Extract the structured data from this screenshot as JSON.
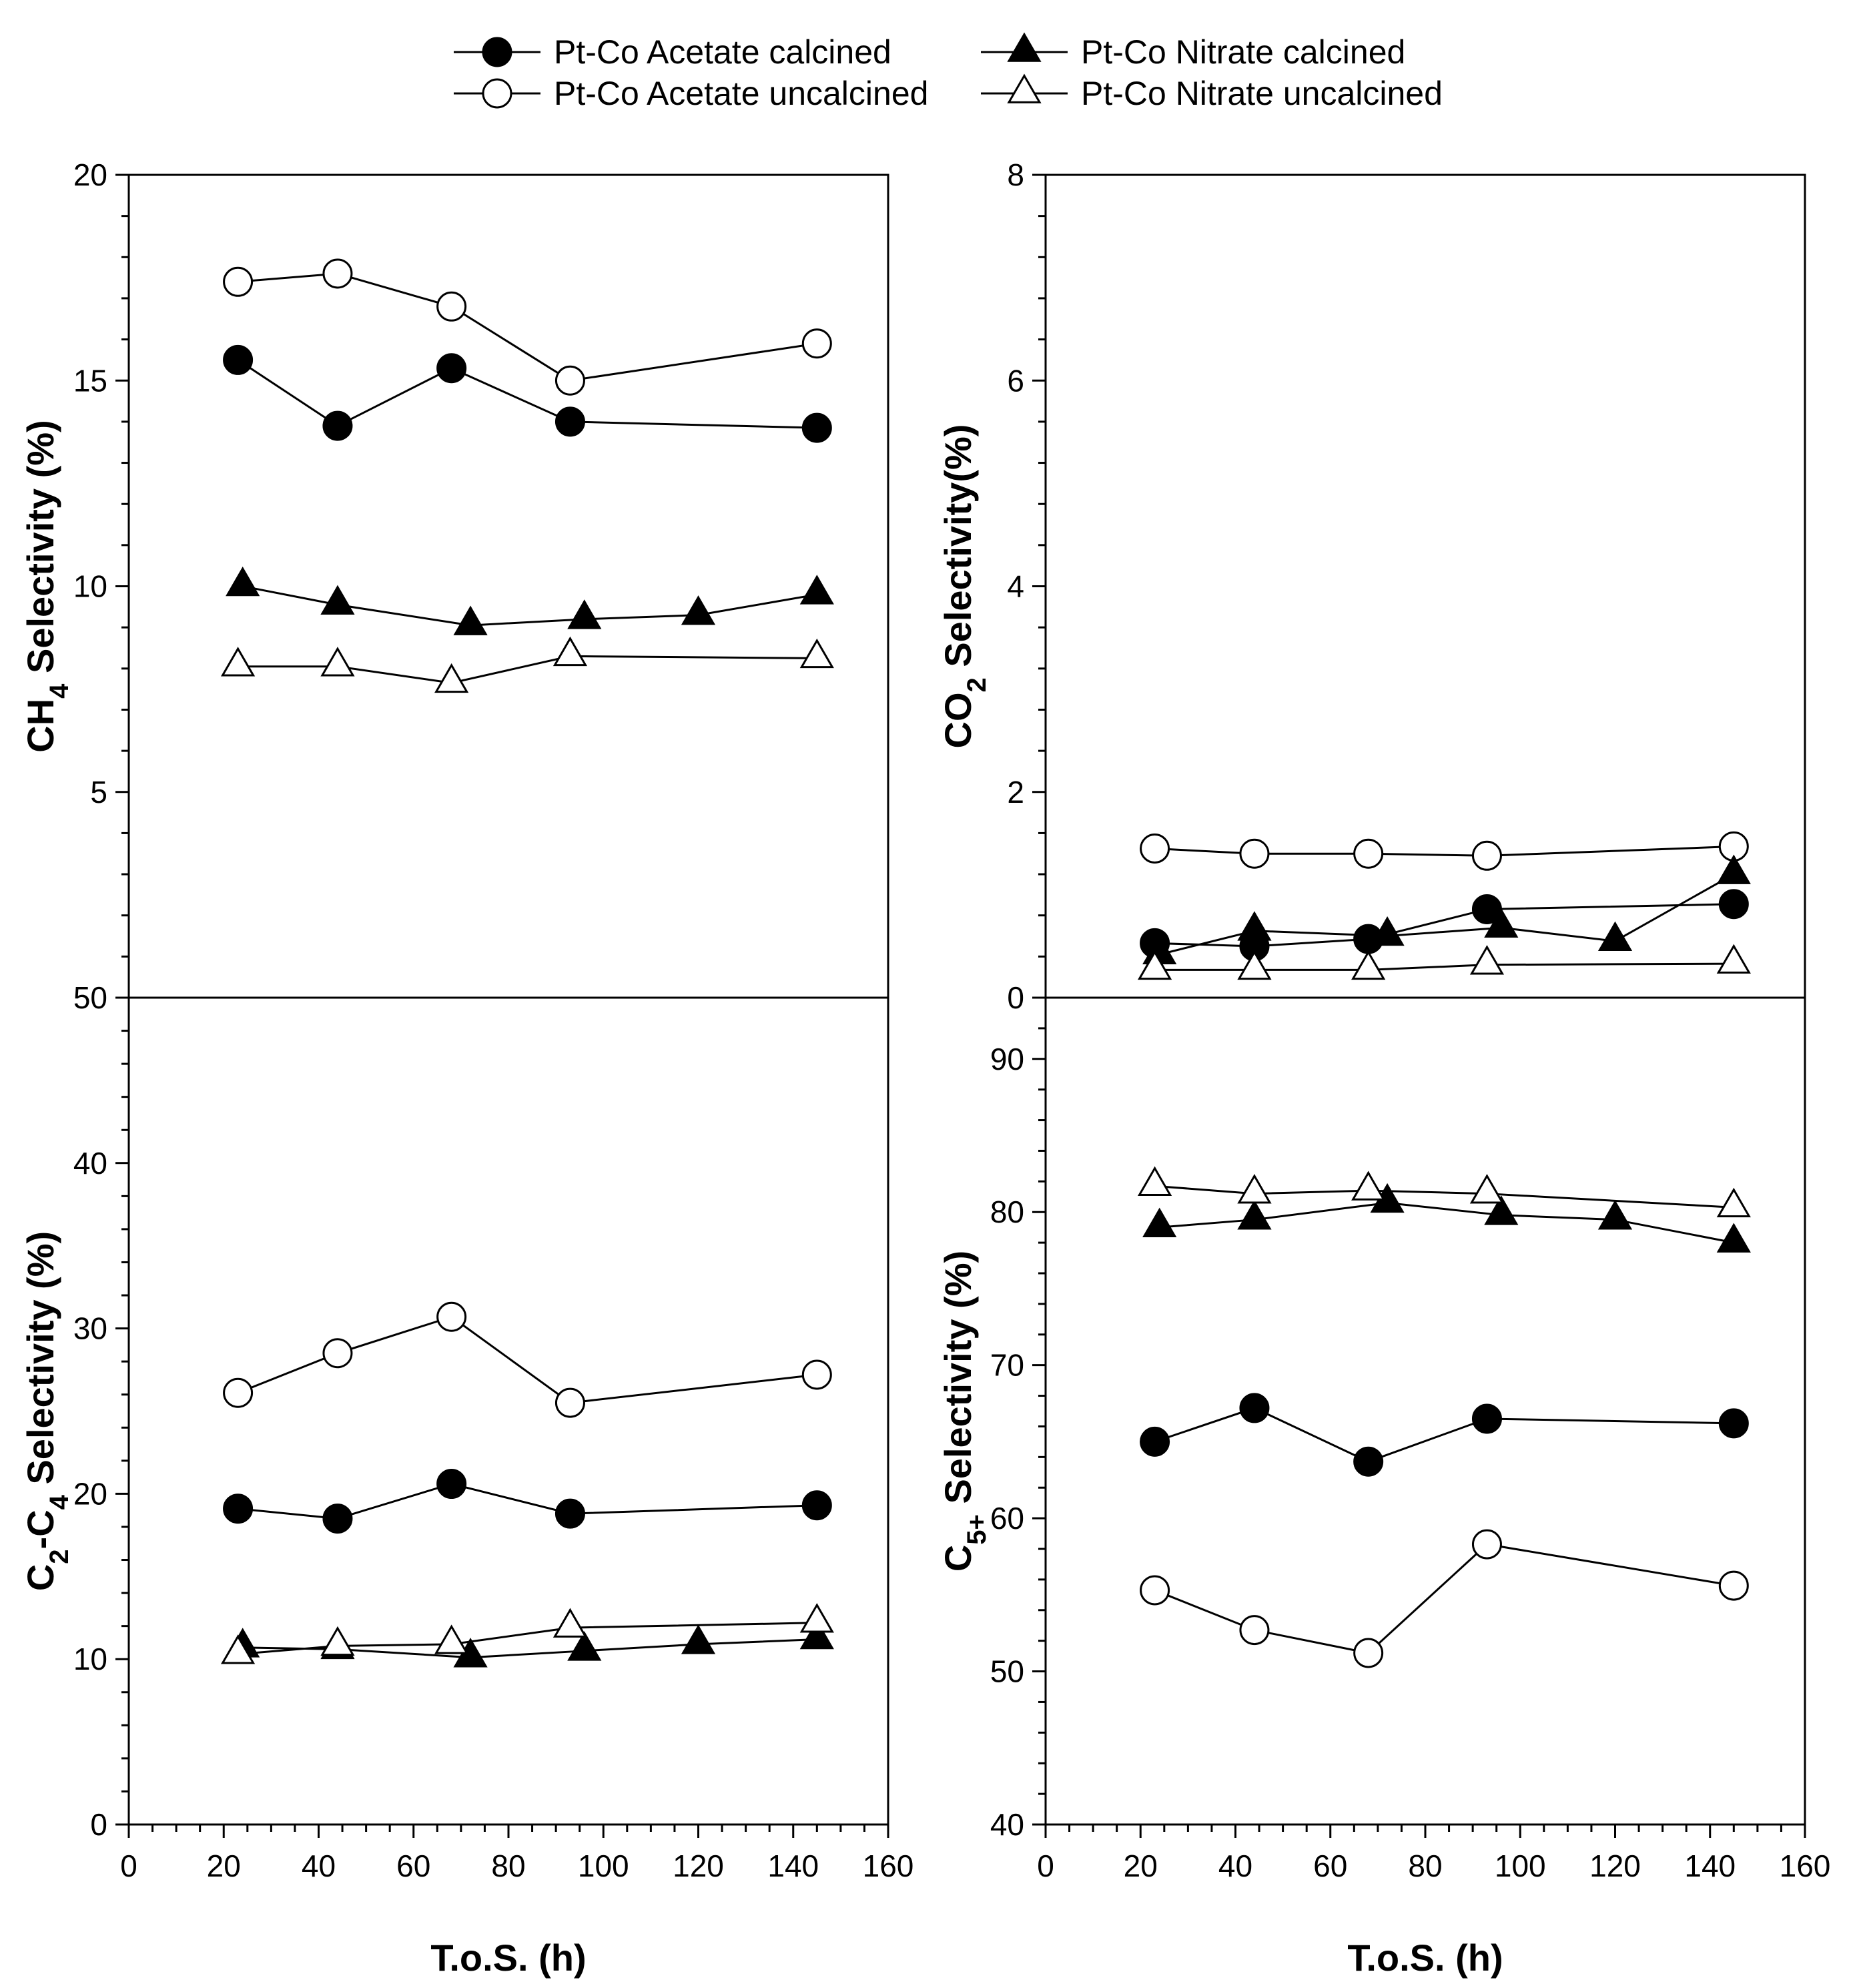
{
  "chart_data": [
    {
      "type": "line",
      "id": "ch4",
      "ylabel": "CH4 Selectivity (%)",
      "ylabel_parts": [
        [
          "CH",
          ""
        ],
        [
          "4",
          "sub"
        ],
        [
          " Selectivity (%)",
          ""
        ]
      ],
      "ylim": [
        0,
        20
      ],
      "yticks": [
        5,
        10,
        15,
        20
      ],
      "show_x_ticks": false,
      "series": [
        {
          "name": "Pt-Co Acetate calcined",
          "x": [
            23,
            44,
            68,
            93,
            145
          ],
          "y": [
            15.5,
            13.9,
            15.3,
            14.0,
            13.85
          ]
        },
        {
          "name": "Pt-Co Acetate uncalcined",
          "x": [
            23,
            44,
            68,
            93,
            145
          ],
          "y": [
            17.4,
            17.6,
            16.8,
            15.0,
            15.9
          ]
        },
        {
          "name": "Pt-Co Nitrate calcined",
          "x": [
            24,
            44,
            72,
            96,
            120,
            145
          ],
          "y": [
            10.0,
            9.55,
            9.05,
            9.2,
            9.3,
            9.8
          ]
        },
        {
          "name": "Pt-Co Nitrate uncalcined",
          "x": [
            23,
            44,
            68,
            93,
            145
          ],
          "y": [
            8.05,
            8.05,
            7.65,
            8.3,
            8.25
          ]
        }
      ]
    },
    {
      "type": "line",
      "id": "co2",
      "ylabel": "CO2 Selectivity(%)",
      "ylabel_parts": [
        [
          "CO",
          ""
        ],
        [
          "2",
          "sub"
        ],
        [
          " Selectivity(%)",
          ""
        ]
      ],
      "ylim": [
        0,
        8
      ],
      "yticks": [
        0,
        2,
        4,
        6,
        8
      ],
      "show_x_ticks": false,
      "series": [
        {
          "name": "Pt-Co Acetate calcined",
          "x": [
            23,
            44,
            68,
            93,
            145
          ],
          "y": [
            0.53,
            0.5,
            0.57,
            0.86,
            0.91
          ]
        },
        {
          "name": "Pt-Co Acetate uncalcined",
          "x": [
            23,
            44,
            68,
            93,
            145
          ],
          "y": [
            1.45,
            1.4,
            1.4,
            1.38,
            1.47
          ]
        },
        {
          "name": "Pt-Co Nitrate calcined",
          "x": [
            24,
            44,
            72,
            96,
            120,
            145
          ],
          "y": [
            0.42,
            0.65,
            0.6,
            0.68,
            0.55,
            1.2
          ]
        },
        {
          "name": "Pt-Co Nitrate uncalcined",
          "x": [
            23,
            44,
            68,
            93,
            145
          ],
          "y": [
            0.27,
            0.27,
            0.27,
            0.32,
            0.33
          ]
        }
      ]
    },
    {
      "type": "line",
      "id": "c2c4",
      "ylabel": "C2-C4 Selectivity (%)",
      "ylabel_parts": [
        [
          "C",
          ""
        ],
        [
          "2",
          "sub"
        ],
        [
          "-C",
          ""
        ],
        [
          "4",
          "sub"
        ],
        [
          " Selectivity (%)",
          ""
        ]
      ],
      "xlabel": "T.o.S. (h)",
      "xlim": [
        0,
        160
      ],
      "xticks": [
        0,
        20,
        40,
        60,
        80,
        100,
        120,
        140,
        160
      ],
      "ylim": [
        0,
        50
      ],
      "yticks": [
        0,
        10,
        20,
        30,
        40,
        50
      ],
      "show_x_ticks": true,
      "series": [
        {
          "name": "Pt-Co Acetate calcined",
          "x": [
            23,
            44,
            68,
            93,
            145
          ],
          "y": [
            19.1,
            18.5,
            20.6,
            18.8,
            19.3
          ]
        },
        {
          "name": "Pt-Co Acetate uncalcined",
          "x": [
            23,
            44,
            68,
            93,
            145
          ],
          "y": [
            26.1,
            28.5,
            30.7,
            25.5,
            27.2
          ]
        },
        {
          "name": "Pt-Co Nitrate calcined",
          "x": [
            24,
            44,
            72,
            96,
            120,
            145
          ],
          "y": [
            10.7,
            10.6,
            10.1,
            10.5,
            10.9,
            11.2
          ]
        },
        {
          "name": "Pt-Co Nitrate uncalcined",
          "x": [
            23,
            44,
            68,
            93,
            145
          ],
          "y": [
            10.3,
            10.8,
            10.9,
            11.9,
            12.2
          ]
        }
      ]
    },
    {
      "type": "line",
      "id": "c5",
      "ylabel": "C5+ Selectivity (%)",
      "ylabel_parts": [
        [
          "C",
          ""
        ],
        [
          "5+",
          "sub"
        ],
        [
          " Selectivity (%)",
          ""
        ]
      ],
      "xlabel": "T.o.S. (h)",
      "xlim": [
        0,
        160
      ],
      "xticks": [
        0,
        20,
        40,
        60,
        80,
        100,
        120,
        140,
        160
      ],
      "ylim": [
        40,
        94
      ],
      "yticks": [
        40,
        50,
        60,
        70,
        80,
        90
      ],
      "show_x_ticks": true,
      "series": [
        {
          "name": "Pt-Co Acetate calcined",
          "x": [
            23,
            44,
            68,
            93,
            145
          ],
          "y": [
            65.0,
            67.2,
            63.7,
            66.5,
            66.2
          ]
        },
        {
          "name": "Pt-Co Acetate uncalcined",
          "x": [
            23,
            44,
            68,
            93,
            145
          ],
          "y": [
            55.3,
            52.7,
            51.2,
            58.3,
            55.6
          ]
        },
        {
          "name": "Pt-Co Nitrate calcined",
          "x": [
            24,
            44,
            72,
            96,
            120,
            145
          ],
          "y": [
            79.0,
            79.5,
            80.6,
            79.8,
            79.5,
            78.0
          ]
        },
        {
          "name": "Pt-Co Nitrate uncalcined",
          "x": [
            23,
            44,
            68,
            93,
            145
          ],
          "y": [
            81.7,
            81.2,
            81.4,
            81.2,
            80.3
          ]
        }
      ]
    }
  ],
  "legend": {
    "placement": "top-center",
    "entries": [
      {
        "label": "Pt-Co Acetate calcined",
        "marker": "circle",
        "fill": "#000000"
      },
      {
        "label": "Pt-Co Nitrate calcined",
        "marker": "triangle",
        "fill": "#000000"
      },
      {
        "label": "Pt-Co Acetate uncalcined",
        "marker": "circle",
        "fill": "#ffffff"
      },
      {
        "label": "Pt-Co Nitrate uncalcined",
        "marker": "triangle",
        "fill": "#ffffff"
      }
    ]
  },
  "colors": {
    "ink": "#000000",
    "background": "#ffffff"
  }
}
